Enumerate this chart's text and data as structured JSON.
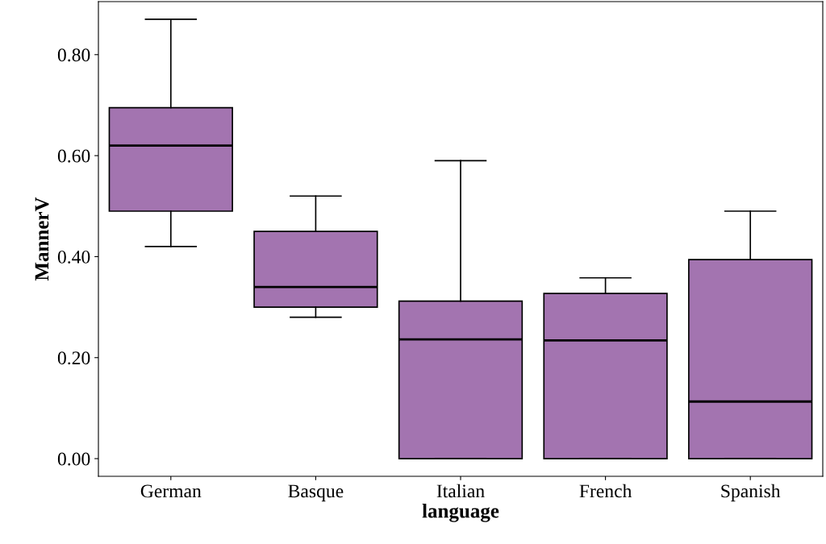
{
  "chart_data": {
    "type": "box",
    "xlabel": "language",
    "ylabel": "MannerV",
    "categories": [
      "German",
      "Basque",
      "Italian",
      "French",
      "Spanish"
    ],
    "color": "#a374b0",
    "boxes": [
      {
        "low": 0.42,
        "q1": 0.49,
        "median": 0.62,
        "q3": 0.695,
        "high": 0.87
      },
      {
        "low": 0.28,
        "q1": 0.3,
        "median": 0.34,
        "q3": 0.45,
        "high": 0.52
      },
      {
        "low": 0.0,
        "q1": 0.0,
        "median": 0.236,
        "q3": 0.312,
        "high": 0.59
      },
      {
        "low": 0.0,
        "q1": 0.0,
        "median": 0.234,
        "q3": 0.327,
        "high": 0.358
      },
      {
        "low": 0.0,
        "q1": 0.0,
        "median": 0.113,
        "q3": 0.394,
        "high": 0.49
      }
    ],
    "ylim": [
      -0.035,
      0.905
    ],
    "yticks": [
      {
        "value": 0,
        "label": "0.00"
      },
      {
        "value": 0.2,
        "label": "0.20"
      },
      {
        "value": 0.4,
        "label": "0.40"
      },
      {
        "value": 0.6,
        "label": "0.60"
      },
      {
        "value": 0.8,
        "label": "0.80"
      }
    ],
    "grid": false,
    "legend": false
  }
}
